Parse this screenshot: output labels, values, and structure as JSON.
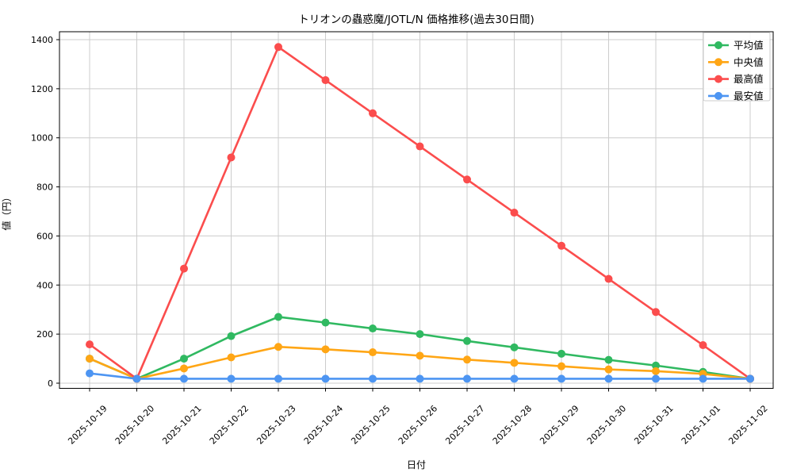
{
  "chart_data": {
    "type": "line",
    "title": "トリオンの蟲惑魔/JOTL/N 価格推移(過去30日間)",
    "xlabel": "日付",
    "ylabel": "値（円）",
    "x": [
      "2025-10-19",
      "2025-10-20",
      "2025-10-21",
      "2025-10-22",
      "2025-10-23",
      "2025-10-24",
      "2025-10-25",
      "2025-10-26",
      "2025-10-27",
      "2025-10-28",
      "2025-10-29",
      "2025-10-30",
      "2025-10-31",
      "2025-11-01",
      "2025-11-02"
    ],
    "yticks": [
      0,
      200,
      400,
      600,
      800,
      1000,
      1200,
      1400
    ],
    "ylim": [
      -20,
      1430
    ],
    "grid": true,
    "grid_color": "#cccccc",
    "legend_position": "upper right",
    "series": [
      {
        "name": "平均値",
        "key": "average",
        "color": "#30b961",
        "values": [
          100,
          18,
          100,
          192,
          270,
          247,
          223,
          200,
          172,
          146,
          120,
          95,
          72,
          46,
          18
        ]
      },
      {
        "name": "中央値",
        "key": "median",
        "color": "#ffa615",
        "values": [
          100,
          18,
          60,
          105,
          148,
          138,
          126,
          112,
          96,
          83,
          69,
          56,
          49,
          38,
          18
        ]
      },
      {
        "name": "最高値",
        "key": "highest",
        "color": "#fb4d4d",
        "values": [
          158,
          18,
          467,
          920,
          1370,
          1235,
          1100,
          965,
          830,
          695,
          560,
          425,
          290,
          155,
          18
        ]
      },
      {
        "name": "最安値",
        "key": "lowest",
        "color": "#4d95f2",
        "values": [
          40,
          18,
          18,
          18,
          18,
          18,
          18,
          18,
          18,
          18,
          18,
          18,
          18,
          18,
          18
        ]
      }
    ]
  }
}
